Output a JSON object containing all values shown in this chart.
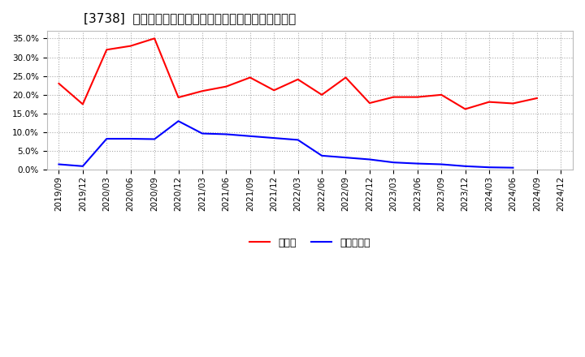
{
  "title": "[3738]  現預金、有利子負債の総資産に対する比率の推移",
  "x_labels": [
    "2019/09",
    "2019/12",
    "2020/03",
    "2020/06",
    "2020/09",
    "2020/12",
    "2021/03",
    "2021/06",
    "2021/09",
    "2021/12",
    "2022/03",
    "2022/06",
    "2022/09",
    "2022/12",
    "2023/03",
    "2023/06",
    "2023/09",
    "2023/12",
    "2024/03",
    "2024/06",
    "2024/09",
    "2024/12"
  ],
  "cash_values": [
    0.23,
    0.175,
    0.32,
    0.33,
    0.35,
    0.193,
    0.21,
    0.222,
    0.246,
    0.212,
    0.241,
    0.2,
    0.246,
    0.178,
    0.194,
    0.194,
    0.2,
    0.162,
    0.181,
    0.177,
    0.191,
    null
  ],
  "debt_values": [
    0.015,
    0.01,
    0.083,
    0.083,
    0.082,
    0.13,
    0.097,
    0.095,
    0.09,
    0.085,
    0.08,
    0.038,
    0.033,
    0.028,
    0.02,
    0.017,
    0.015,
    0.01,
    0.007,
    0.006,
    null,
    null
  ],
  "cash_color": "#ff0000",
  "debt_color": "#0000ff",
  "background_color": "#ffffff",
  "grid_color": "#aaaaaa",
  "ylim": [
    0.0,
    0.37
  ],
  "yticks": [
    0.0,
    0.05,
    0.1,
    0.15,
    0.2,
    0.25,
    0.3,
    0.35
  ],
  "legend_cash": "現預金",
  "legend_debt": "有利子負債",
  "title_fontsize": 11,
  "axis_fontsize": 7.5
}
